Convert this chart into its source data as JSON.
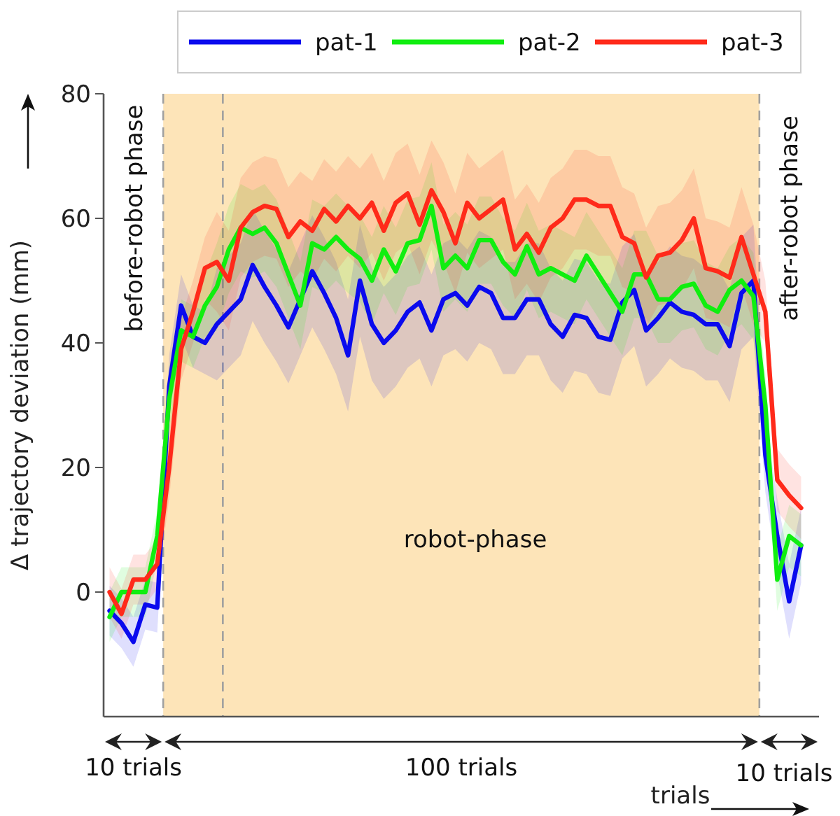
{
  "chart_data": {
    "type": "line",
    "ylabel": "Δ trajectory deviation (mm)",
    "xlabel": "trials",
    "categories": [
      null,
      null,
      null,
      null,
      null,
      null,
      null,
      null,
      null,
      null,
      null,
      null,
      null,
      null,
      null,
      null,
      null,
      null,
      null,
      null,
      null,
      null,
      null,
      null,
      null,
      null,
      null,
      null,
      null,
      null,
      null,
      null,
      null,
      null,
      null,
      null,
      null,
      null,
      null,
      null,
      null,
      null,
      null,
      null,
      null,
      null,
      null,
      null,
      null,
      null,
      null,
      null,
      null,
      null,
      null,
      null,
      null,
      null,
      null
    ],
    "ylim": [
      -20,
      80
    ],
    "yticks": [
      0,
      20,
      40,
      60,
      80
    ],
    "tick_labels": "y",
    "grid": false,
    "legend": "top",
    "line_style": "solid",
    "marker": "none",
    "annotations": [
      "before-robot phase",
      "robot-phase",
      "after-robot phase",
      "10 trials",
      "100 trials",
      "10 trials"
    ],
    "series": [
      {
        "name": "pat-1",
        "color": "#0a0aee",
        "values": [
          -3,
          -5,
          -8,
          -2,
          -2.5,
          33,
          46,
          41,
          40,
          43,
          45,
          47,
          52.5,
          49,
          46,
          42.5,
          47,
          51.5,
          48,
          44,
          38,
          50,
          43,
          40,
          42,
          45,
          46.5,
          42,
          47,
          48,
          46,
          49,
          48,
          44,
          44,
          47,
          47,
          43,
          41,
          44.5,
          44,
          41,
          40.5,
          46.5,
          48.5,
          42,
          44,
          46.5,
          45,
          44.5,
          43,
          43,
          39.5,
          48,
          50,
          22,
          9,
          -1.5,
          7.5
        ],
        "lower": [
          -7,
          -9,
          -12,
          -6,
          -6.5,
          28,
          41,
          36,
          35,
          34,
          36,
          38,
          43.5,
          40,
          37,
          33.5,
          38,
          42.5,
          39,
          35,
          29,
          41,
          34,
          31,
          33,
          36,
          37.5,
          33,
          38,
          39,
          37,
          40,
          39,
          35,
          35,
          38,
          38,
          34,
          32,
          35.5,
          35,
          32,
          31.5,
          37.5,
          39.5,
          33,
          35,
          37.5,
          36,
          35.5,
          34,
          34,
          30.5,
          39,
          41,
          16,
          3,
          -7.5,
          1.5
        ],
        "upper": [
          1,
          -1,
          -4,
          2,
          1.5,
          38,
          51,
          46,
          45,
          52,
          54,
          56,
          61.5,
          58,
          55,
          51.5,
          56,
          60.5,
          57,
          53,
          47,
          59,
          52,
          49,
          51,
          54,
          55.5,
          51,
          56,
          57,
          55,
          58,
          57,
          53,
          53,
          56,
          56,
          52,
          50,
          53.5,
          53,
          50,
          49.5,
          55.5,
          57.5,
          51,
          53,
          55.5,
          54,
          53.5,
          52,
          52,
          48.5,
          57,
          59,
          28,
          15,
          4.5,
          13.5
        ]
      },
      {
        "name": "pat-2",
        "color": "#10ee10",
        "values": [
          -4,
          0,
          0,
          0,
          9,
          31,
          42,
          41,
          46,
          49,
          55,
          58.5,
          57.5,
          58.5,
          56,
          51,
          46,
          56,
          55,
          57,
          55,
          53.5,
          50,
          55,
          51.5,
          56,
          56.5,
          62,
          52,
          54,
          52,
          56.5,
          56.5,
          53,
          51,
          55.5,
          51,
          52,
          51,
          50,
          54,
          51,
          48,
          45,
          51,
          51,
          47,
          47,
          49,
          49.5,
          46,
          45,
          48.5,
          50,
          47.5,
          30,
          2,
          9,
          7.5
        ],
        "lower": [
          -8,
          -4,
          -4,
          -4,
          5,
          26,
          37,
          36,
          41,
          42,
          48,
          51.5,
          50.5,
          51.5,
          49,
          44,
          39,
          49,
          48,
          50,
          48,
          46.5,
          43,
          48,
          44.5,
          49,
          49.5,
          55,
          45,
          47,
          45,
          49.5,
          49.5,
          46,
          44,
          48.5,
          44,
          45,
          44,
          43,
          47,
          44,
          41,
          38,
          44,
          44,
          40,
          40,
          42,
          42.5,
          39,
          38,
          41.5,
          43,
          40.5,
          25,
          -3,
          4,
          2.5
        ],
        "upper": [
          0,
          4,
          4,
          4,
          13,
          36,
          47,
          46,
          51,
          56,
          62,
          65.5,
          64.5,
          65.5,
          63,
          58,
          53,
          63,
          62,
          64,
          62,
          60.5,
          57,
          62,
          58.5,
          63,
          63.5,
          69,
          59,
          61,
          59,
          63.5,
          63.5,
          60,
          58,
          62.5,
          58,
          59,
          58,
          57,
          61,
          58,
          55,
          52,
          58,
          58,
          54,
          54,
          56,
          56.5,
          53,
          52,
          55.5,
          57,
          54.5,
          35,
          7,
          14,
          12.5
        ]
      },
      {
        "name": "pat-3",
        "color": "#ff2a1a",
        "values": [
          0,
          -3.5,
          2,
          2,
          4.5,
          20,
          39,
          45,
          52,
          53,
          50,
          58.5,
          61,
          62,
          61.5,
          57,
          59.5,
          58,
          61.5,
          59.5,
          62,
          60,
          62.5,
          58,
          62.5,
          64,
          59,
          64.5,
          61,
          56,
          62.5,
          60,
          61.5,
          63,
          55,
          57.5,
          54.5,
          58.5,
          60,
          63,
          63,
          62,
          62,
          57,
          56,
          50.5,
          54,
          54.5,
          56.5,
          60,
          52,
          51.5,
          50.5,
          57,
          51,
          45,
          18,
          15.5,
          13.5
        ],
        "lower": [
          -4,
          -7.5,
          -2,
          -2,
          0.5,
          15,
          34,
          40,
          47,
          45,
          42,
          50.5,
          53,
          54,
          53.5,
          49,
          51.5,
          50,
          53.5,
          51.5,
          54,
          52,
          54.5,
          50,
          54.5,
          56,
          51,
          56.5,
          53,
          48,
          54.5,
          52,
          53.5,
          55,
          47,
          49.5,
          46.5,
          50.5,
          52,
          55,
          55,
          54,
          54,
          49,
          48,
          42.5,
          46,
          46.5,
          48.5,
          52,
          44,
          43.5,
          42.5,
          49,
          43,
          40,
          13,
          10.5,
          8.5
        ],
        "upper": [
          4,
          0.5,
          6,
          6,
          8.5,
          25,
          44,
          50,
          57,
          61,
          58,
          66.5,
          69,
          70,
          69.5,
          65,
          67.5,
          66,
          69.5,
          67.5,
          70,
          68,
          70.5,
          66,
          70.5,
          72,
          67,
          72.5,
          69,
          64,
          70.5,
          68,
          69.5,
          71,
          63,
          65.5,
          62.5,
          66.5,
          68,
          71,
          71,
          70,
          70,
          65,
          64,
          58.5,
          62,
          62.5,
          64.5,
          68,
          60,
          59.5,
          58.5,
          65,
          59,
          50,
          23,
          20.5,
          18.5
        ]
      }
    ]
  }
}
